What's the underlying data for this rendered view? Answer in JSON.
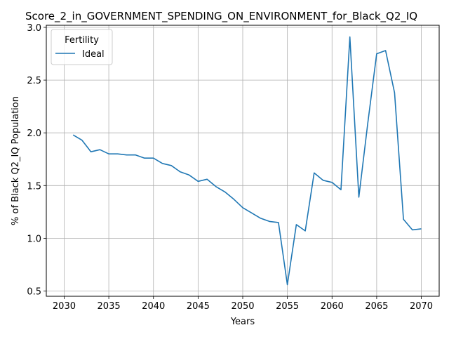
{
  "chart_data": {
    "type": "line",
    "title": "Score_2_in_GOVERNMENT_SPENDING_ON_ENVIRONMENT_for_Black_Q2_IQ",
    "xlabel": "Years",
    "ylabel": "% of Black Q2_IQ Population",
    "xlim": [
      2028,
      2072
    ],
    "ylim": [
      0.45,
      3.02
    ],
    "xticks": [
      2030,
      2035,
      2040,
      2045,
      2050,
      2055,
      2060,
      2065,
      2070
    ],
    "yticks": [
      0.5,
      1.0,
      1.5,
      2.0,
      2.5,
      3.0
    ],
    "xtick_labels": [
      "2030",
      "2035",
      "2040",
      "2045",
      "2050",
      "2055",
      "2060",
      "2065",
      "2070"
    ],
    "ytick_labels": [
      "0.5",
      "1.0",
      "1.5",
      "2.0",
      "2.5",
      "3.0"
    ],
    "grid": true,
    "legend": {
      "title": "Fertility",
      "placement": "top-left"
    },
    "series": [
      {
        "name": "Ideal",
        "color": "#1f77b4",
        "x": [
          2031,
          2032,
          2033,
          2034,
          2035,
          2036,
          2037,
          2038,
          2039,
          2040,
          2041,
          2042,
          2043,
          2044,
          2045,
          2046,
          2047,
          2048,
          2049,
          2050,
          2051,
          2052,
          2053,
          2054,
          2055,
          2056,
          2057,
          2058,
          2059,
          2060,
          2061,
          2062,
          2063,
          2064,
          2065,
          2066,
          2067,
          2068,
          2069,
          2070
        ],
        "values": [
          1.98,
          1.93,
          1.82,
          1.84,
          1.8,
          1.8,
          1.79,
          1.79,
          1.76,
          1.76,
          1.71,
          1.69,
          1.63,
          1.6,
          1.54,
          1.56,
          1.49,
          1.44,
          1.37,
          1.29,
          1.24,
          1.19,
          1.16,
          1.15,
          0.56,
          1.13,
          1.07,
          1.62,
          1.55,
          1.53,
          1.46,
          2.91,
          1.39,
          2.09,
          2.75,
          2.78,
          2.38,
          1.18,
          1.08,
          1.09
        ]
      }
    ]
  }
}
